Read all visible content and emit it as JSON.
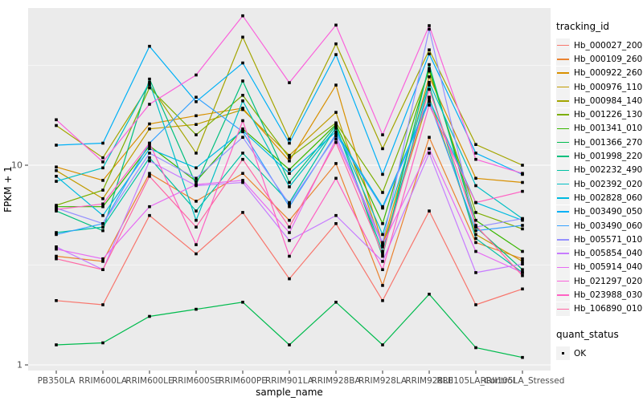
{
  "chart_data": {
    "type": "line",
    "xlabel": "sample_name",
    "ylabel": "FPKM + 1",
    "y_scale": "log10",
    "y_major_ticks": [
      1,
      10
    ],
    "y_minor_gridlines": [
      3.162,
      31.623
    ],
    "ylim": [
      0.93,
      61
    ],
    "grid": "on",
    "panel_background": "#EBEBEB",
    "gridline_color": "#FFFFFF",
    "axis_text_color": "#4D4D4D",
    "tick_color": "#333333",
    "point_marker": "black-filled-square",
    "x_categories": [
      "PB350LA",
      "RRIM600LA",
      "RRIM600LE",
      "RRIM600SE",
      "RRIM600PE",
      "RRIM901LA",
      "RRIM928BA",
      "RRIM928LA",
      "RRIM928LE",
      "RRII105LA_Control",
      "RRII105LA_Stressed"
    ],
    "legend": {
      "title": "tracking_id",
      "position": "right",
      "quant_title": "quant_status",
      "quant_value": "OK"
    },
    "series": [
      {
        "name": "Hb_000027_200",
        "color": "#F8766D",
        "values": [
          2.1,
          2.0,
          5.6,
          3.6,
          5.8,
          2.7,
          5.1,
          2.1,
          5.9,
          2.0,
          2.4
        ]
      },
      {
        "name": "Hb_000109_260",
        "color": "#EA8331",
        "values": [
          3.5,
          3.3,
          9.1,
          6.6,
          9.1,
          5.3,
          10.2,
          2.5,
          13.8,
          4.1,
          3.4
        ]
      },
      {
        "name": "Hb_000922_260",
        "color": "#D89000",
        "values": [
          9.8,
          8.4,
          16.1,
          17.7,
          19.3,
          10.5,
          25.2,
          4.0,
          27.7,
          8.6,
          8.2
        ]
      },
      {
        "name": "Hb_000976_110",
        "color": "#C09B00",
        "values": [
          9.4,
          6.8,
          15.2,
          16.0,
          19.0,
          11.2,
          18.4,
          3.9,
          21.9,
          4.5,
          3.3
        ]
      },
      {
        "name": "Hb_000984_140",
        "color": "#A3A500",
        "values": [
          15.8,
          10.9,
          25.3,
          11.5,
          43.8,
          13.5,
          40.5,
          12.1,
          37.8,
          12.7,
          10.0
        ]
      },
      {
        "name": "Hb_001226_130",
        "color": "#7CAE00",
        "values": [
          6.3,
          7.5,
          24.4,
          14.2,
          22.4,
          10.9,
          16.3,
          7.3,
          29.6,
          5.8,
          4.8
        ]
      },
      {
        "name": "Hb_001341_010",
        "color": "#39B600",
        "values": [
          6.2,
          6.2,
          12.5,
          8.3,
          15.2,
          9.5,
          16.0,
          5.1,
          30.5,
          5.3,
          3.7
        ]
      },
      {
        "name": "Hb_001366_270",
        "color": "#00BB4E",
        "values": [
          1.26,
          1.29,
          1.75,
          1.9,
          2.06,
          1.26,
          2.06,
          1.26,
          2.26,
          1.22,
          1.09
        ]
      },
      {
        "name": "Hb_001998_220",
        "color": "#00BF7D",
        "values": [
          5.9,
          4.7,
          27.0,
          8.0,
          26.4,
          8.2,
          15.8,
          3.5,
          31.9,
          4.9,
          3.0
        ]
      },
      {
        "name": "Hb_002232_490",
        "color": "#00C1A3",
        "values": [
          4.6,
          4.9,
          10.9,
          5.9,
          11.5,
          6.5,
          15.5,
          3.7,
          25.2,
          4.3,
          2.9
        ]
      },
      {
        "name": "Hb_002392_020",
        "color": "#00BFC4",
        "values": [
          8.3,
          9.7,
          26.0,
          5.3,
          21.0,
          7.8,
          15.3,
          4.5,
          26.0,
          7.9,
          5.4
        ]
      },
      {
        "name": "Hb_002828_060",
        "color": "#00BAE0",
        "values": [
          8.8,
          5.6,
          12.1,
          9.7,
          14.9,
          9.1,
          14.7,
          6.2,
          21.3,
          6.5,
          5.3
        ]
      },
      {
        "name": "Hb_003490_050",
        "color": "#00B0F6",
        "values": [
          12.6,
          12.9,
          39.4,
          20.8,
          32.5,
          12.9,
          35.8,
          9.0,
          36.1,
          11.5,
          9.0
        ]
      },
      {
        "name": "Hb_003490_060",
        "color": "#35A2FF",
        "values": [
          4.5,
          5.1,
          12.9,
          21.9,
          14.7,
          6.2,
          14.3,
          6.1,
          20.8,
          4.7,
          5.0
        ]
      },
      {
        "name": "Hb_005571_010",
        "color": "#9590FF",
        "values": [
          6.1,
          5.1,
          11.5,
          8.6,
          13.8,
          6.4,
          14.0,
          4.1,
          48.0,
          4.9,
          5.4
        ]
      },
      {
        "name": "Hb_005854_040",
        "color": "#C77CFF",
        "values": [
          3.9,
          3.0,
          10.5,
          7.9,
          8.2,
          4.2,
          5.6,
          3.3,
          11.5,
          2.9,
          3.2
        ]
      },
      {
        "name": "Hb_005914_040",
        "color": "#E76BF3",
        "values": [
          3.8,
          3.4,
          6.2,
          8.0,
          8.4,
          4.6,
          13.5,
          4.0,
          12.1,
          3.7,
          2.9
        ]
      },
      {
        "name": "Hb_021297_020",
        "color": "#FA62DB",
        "values": [
          16.9,
          10.4,
          20.2,
          28.3,
          56.0,
          25.9,
          50.3,
          14.2,
          50.0,
          10.7,
          9.1
        ]
      },
      {
        "name": "Hb_023988_030",
        "color": "#FF61C3",
        "values": [
          6.0,
          6.4,
          12.9,
          4.0,
          16.7,
          3.5,
          8.6,
          3.0,
          20.0,
          6.5,
          7.4
        ]
      },
      {
        "name": "Hb_106890_010",
        "color": "#FF67A4",
        "values": [
          3.4,
          3.0,
          8.8,
          4.9,
          10.7,
          4.9,
          13.0,
          3.6,
          24.0,
          5.0,
          2.8
        ]
      }
    ]
  }
}
